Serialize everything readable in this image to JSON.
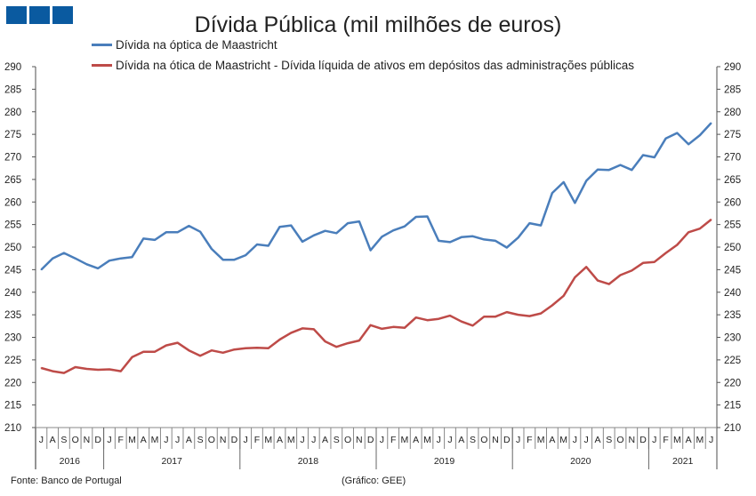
{
  "chart_data": {
    "type": "line",
    "title": "Dívida Pública (mil milhões de euros)",
    "xlabel": "",
    "ylabel": "",
    "ylim": [
      210,
      290
    ],
    "yticks": [
      "210",
      "215",
      "220",
      "225",
      "230",
      "235",
      "240",
      "245",
      "250",
      "255",
      "260",
      "265",
      "270",
      "275",
      "280",
      "285",
      "290"
    ],
    "months": [
      "J",
      "A",
      "S",
      "O",
      "N",
      "D",
      "J",
      "F",
      "M",
      "A",
      "M",
      "J",
      "J",
      "A",
      "S",
      "O",
      "N",
      "D",
      "J",
      "F",
      "M",
      "A",
      "M",
      "J",
      "J",
      "A",
      "S",
      "O",
      "N",
      "D",
      "J",
      "F",
      "M",
      "A",
      "M",
      "J",
      "J",
      "A",
      "S",
      "O",
      "N",
      "D",
      "J",
      "F",
      "M",
      "A",
      "M",
      "J",
      "J",
      "A",
      "S",
      "O",
      "N",
      "D",
      "J",
      "F",
      "M",
      "A",
      "M",
      "J"
    ],
    "years": [
      {
        "label": "2016",
        "months": 6
      },
      {
        "label": "2017",
        "months": 12
      },
      {
        "label": "2018",
        "months": 12
      },
      {
        "label": "2019",
        "months": 12
      },
      {
        "label": "2020",
        "months": 12
      },
      {
        "label": "2021",
        "months": 6
      }
    ],
    "legend_position": "top",
    "series": [
      {
        "name": "Dívida na óptica de Maastricht",
        "color": "#4a7ebb",
        "values": [
          245,
          247.5,
          248.7,
          247.5,
          246.2,
          245.3,
          247,
          247.5,
          247.8,
          251.9,
          251.6,
          253.3,
          253.3,
          254.7,
          253.4,
          249.6,
          247.2,
          247.2,
          248.2,
          250.6,
          250.3,
          254.5,
          254.8,
          251.2,
          252.6,
          253.6,
          253.1,
          255.3,
          255.7,
          249.3,
          252.3,
          253.7,
          254.6,
          256.7,
          256.8,
          251.4,
          251.1,
          252.2,
          252.4,
          251.7,
          251.4,
          249.9,
          252.1,
          255.3,
          254.8,
          262,
          264.4,
          259.8,
          264.7,
          267.2,
          267.1,
          268.2,
          267.1,
          270.4,
          269.9,
          274.1,
          275.3,
          272.8,
          274.8,
          277.5
        ]
      },
      {
        "name": "Dívida na ótica de Maastricht - Dívida líquida de ativos em depósitos das administrações públicas",
        "color": "#be4b48",
        "values": [
          223.2,
          222.5,
          222.1,
          223.4,
          223.0,
          222.8,
          222.9,
          222.5,
          225.6,
          226.8,
          226.8,
          228.2,
          228.8,
          227.1,
          225.9,
          227.1,
          226.6,
          227.3,
          227.6,
          227.7,
          227.6,
          229.5,
          231.0,
          232.0,
          231.8,
          229.1,
          227.9,
          228.7,
          229.3,
          232.7,
          231.9,
          232.3,
          232.1,
          234.4,
          233.8,
          234.1,
          234.8,
          233.5,
          232.6,
          234.6,
          234.6,
          235.6,
          235.0,
          234.7,
          235.3,
          237.1,
          239.2,
          243.3,
          245.6,
          242.6,
          241.8,
          243.8,
          244.8,
          246.5,
          246.7,
          248.7,
          250.5,
          253.3,
          254.1,
          256.1
        ]
      }
    ]
  },
  "footer": {
    "source": "Fonte: Banco de Portugal",
    "credit": "(Gráfico: GEE)"
  }
}
